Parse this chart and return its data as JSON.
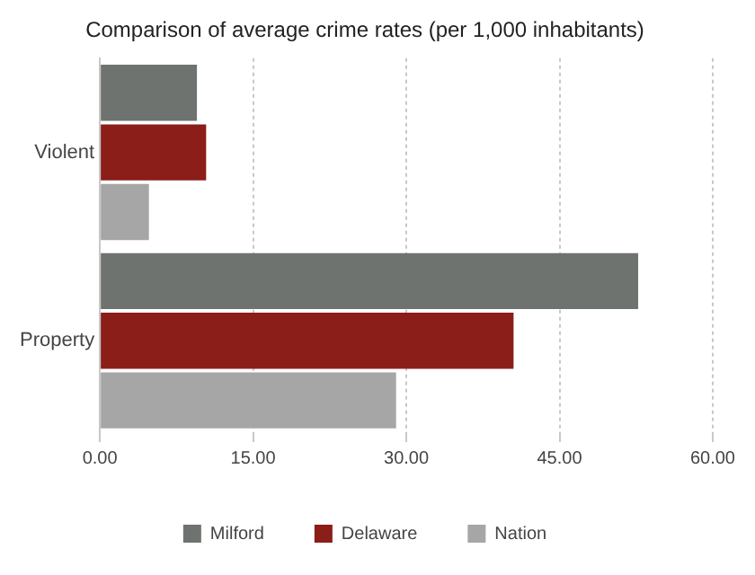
{
  "chart_data": {
    "type": "bar",
    "orientation": "horizontal",
    "title": "Comparison of average crime rates (per 1,000 inhabitants)",
    "categories": [
      "Violent",
      "Property"
    ],
    "series": [
      {
        "name": "Milford",
        "color": "#6e7370",
        "values": [
          9.5,
          52.7
        ]
      },
      {
        "name": "Delaware",
        "color": "#8b1e18",
        "values": [
          10.4,
          40.5
        ]
      },
      {
        "name": "Nation",
        "color": "#a6a6a6",
        "values": [
          4.8,
          29.0
        ]
      }
    ],
    "xlim": [
      0,
      60
    ],
    "xticks": [
      {
        "value": 0,
        "label": "0.00"
      },
      {
        "value": 15,
        "label": "15.00"
      },
      {
        "value": 30,
        "label": "30.00"
      },
      {
        "value": 45,
        "label": "45.00"
      },
      {
        "value": 60,
        "label": "60.00"
      }
    ],
    "grid": "x",
    "legend": "bottom"
  }
}
